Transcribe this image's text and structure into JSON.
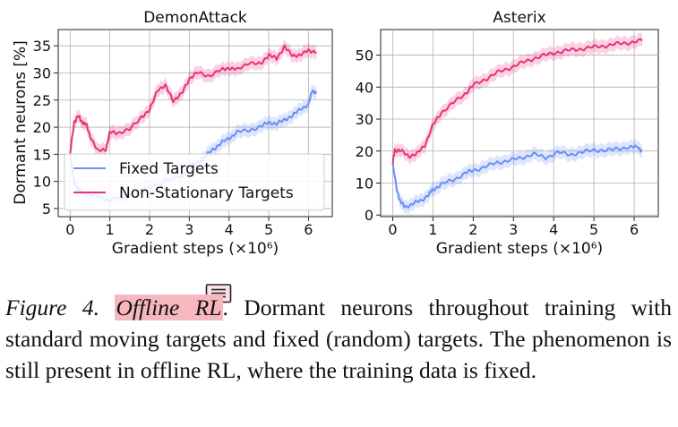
{
  "chart_data": [
    {
      "type": "line",
      "title": "DemonAttack",
      "xlabel": "Gradient steps (×10⁶)",
      "ylabel": "Dormant neurons [%]",
      "xlim": [
        -0.3,
        6.6
      ],
      "ylim": [
        3.5,
        38
      ],
      "xticks": [
        0,
        1,
        2,
        3,
        4,
        5,
        6
      ],
      "yticks": [
        5,
        10,
        15,
        20,
        25,
        30,
        35
      ],
      "grid": true,
      "legend": "lower-left",
      "series": [
        {
          "name": "Fixed Targets",
          "color": "#6b8ff5",
          "x": [
            0,
            0.1,
            0.2,
            0.3,
            0.5,
            0.8,
            1.0,
            1.3,
            1.6,
            2.0,
            2.4,
            2.8,
            3.0,
            3.2,
            3.4,
            3.6,
            3.8,
            4.0,
            4.2,
            4.5,
            4.8,
            5.0,
            5.2,
            5.4,
            5.6,
            5.8,
            6.0,
            6.1,
            6.2
          ],
          "y": [
            15,
            10,
            8.5,
            8,
            7.5,
            7,
            6.5,
            7,
            8,
            9,
            10,
            11,
            12.5,
            13.5,
            14.5,
            16,
            17,
            18,
            19,
            19.5,
            20,
            21,
            20.5,
            21.5,
            22,
            23.5,
            24,
            27,
            26
          ]
        },
        {
          "name": "Non-Stationary Targets",
          "color": "#e8327c",
          "x": [
            0,
            0.1,
            0.2,
            0.3,
            0.4,
            0.5,
            0.7,
            0.9,
            1.0,
            1.2,
            1.5,
            1.8,
            2.0,
            2.2,
            2.4,
            2.6,
            2.8,
            3.0,
            3.2,
            3.5,
            3.8,
            4.0,
            4.2,
            4.5,
            4.8,
            5.0,
            5.2,
            5.4,
            5.6,
            5.8,
            6.0,
            6.2
          ],
          "y": [
            15,
            21,
            22,
            21,
            20.5,
            18.5,
            15.5,
            16,
            19,
            19,
            19.5,
            22,
            23,
            27,
            27.5,
            25,
            26,
            29,
            30,
            29.5,
            30.5,
            31,
            30.5,
            32,
            31.5,
            33.5,
            32.5,
            35,
            33,
            33.5,
            34,
            34
          ]
        }
      ]
    },
    {
      "type": "line",
      "title": "Asterix",
      "xlabel": "Gradient steps (×10⁶)",
      "ylabel": "",
      "xlim": [
        -0.3,
        6.6
      ],
      "ylim": [
        -0.5,
        58
      ],
      "xticks": [
        0,
        1,
        2,
        3,
        4,
        5,
        6
      ],
      "yticks": [
        0,
        10,
        20,
        30,
        40,
        50
      ],
      "grid": true,
      "series": [
        {
          "name": "Fixed Targets",
          "color": "#6b8ff5",
          "x": [
            0,
            0.1,
            0.2,
            0.3,
            0.5,
            0.7,
            0.9,
            1.0,
            1.2,
            1.5,
            1.8,
            2.0,
            2.3,
            2.6,
            2.9,
            3.2,
            3.5,
            3.8,
            4.1,
            4.4,
            4.7,
            5.0,
            5.3,
            5.6,
            5.9,
            6.1,
            6.2
          ],
          "y": [
            16,
            8,
            4,
            2.5,
            3.5,
            4.5,
            6.5,
            8,
            9.5,
            11,
            13,
            14,
            15,
            16.5,
            17,
            18,
            19,
            18,
            19.5,
            19,
            19.5,
            20.5,
            20,
            21,
            21,
            21.5,
            19.5
          ]
        },
        {
          "name": "Non-Stationary Targets",
          "color": "#e8327c",
          "x": [
            0,
            0.05,
            0.2,
            0.4,
            0.6,
            0.8,
            1.0,
            1.2,
            1.5,
            1.8,
            2.0,
            2.3,
            2.6,
            2.9,
            3.2,
            3.5,
            3.8,
            4.1,
            4.4,
            4.7,
            5.0,
            5.3,
            5.6,
            5.9,
            6.2
          ],
          "y": [
            16,
            20.5,
            20,
            18.5,
            19,
            22,
            28,
            32,
            35,
            38,
            40.5,
            42.5,
            44.5,
            46,
            47.5,
            49,
            50,
            51,
            51.5,
            52,
            52.5,
            53,
            53.5,
            54,
            54.5
          ]
        }
      ]
    }
  ],
  "caption": {
    "label": "Figure 4.",
    "highlight": "Offline RL",
    "text": ". Dormant neurons throughout training with standard moving targets and fixed (random) targets. The phenomenon is still present in offline RL, where the training data is fixed."
  }
}
